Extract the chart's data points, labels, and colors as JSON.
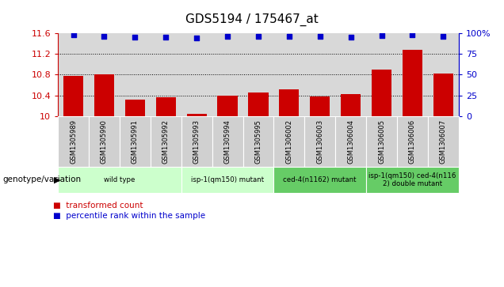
{
  "title": "GDS5194 / 175467_at",
  "samples": [
    "GSM1305989",
    "GSM1305990",
    "GSM1305991",
    "GSM1305992",
    "GSM1305993",
    "GSM1305994",
    "GSM1305995",
    "GSM1306002",
    "GSM1306003",
    "GSM1306004",
    "GSM1306005",
    "GSM1306006",
    "GSM1306007"
  ],
  "bar_values": [
    10.78,
    10.8,
    10.32,
    10.37,
    10.05,
    10.4,
    10.46,
    10.52,
    10.38,
    10.42,
    10.9,
    11.27,
    10.82
  ],
  "dot_values": [
    98,
    96,
    95,
    95,
    94,
    96,
    96,
    96,
    96,
    95,
    97,
    98,
    96
  ],
  "bar_color": "#cc0000",
  "dot_color": "#0000cc",
  "ylim_left": [
    10.0,
    11.6
  ],
  "ylim_right": [
    0,
    100
  ],
  "yticks_left": [
    10.0,
    10.4,
    10.8,
    11.2,
    11.6
  ],
  "yticks_right": [
    0,
    25,
    50,
    75,
    100
  ],
  "ytick_labels_left": [
    "10",
    "10.4",
    "10.8",
    "11.2",
    "11.6"
  ],
  "ytick_labels_right": [
    "0",
    "25",
    "50",
    "75",
    "100%"
  ],
  "grid_lines": [
    10.4,
    10.8,
    11.2
  ],
  "genotype_groups": [
    {
      "label": "wild type",
      "start": 0,
      "end": 3,
      "color": "#ccffcc"
    },
    {
      "label": "isp-1(qm150) mutant",
      "start": 4,
      "end": 6,
      "color": "#ccffcc"
    },
    {
      "label": "ced-4(n1162) mutant",
      "start": 7,
      "end": 9,
      "color": "#66cc66"
    },
    {
      "label": "isp-1(qm150) ced-4(n116\n2) double mutant",
      "start": 10,
      "end": 12,
      "color": "#66cc66"
    }
  ],
  "genotype_label": "genotype/variation",
  "legend_bar_label": "transformed count",
  "legend_dot_label": "percentile rank within the sample",
  "bar_color_legend": "#cc0000",
  "dot_color_legend": "#0000cc",
  "bg_color": "#d8d8d8",
  "xtick_bg": "#d0d0d0"
}
